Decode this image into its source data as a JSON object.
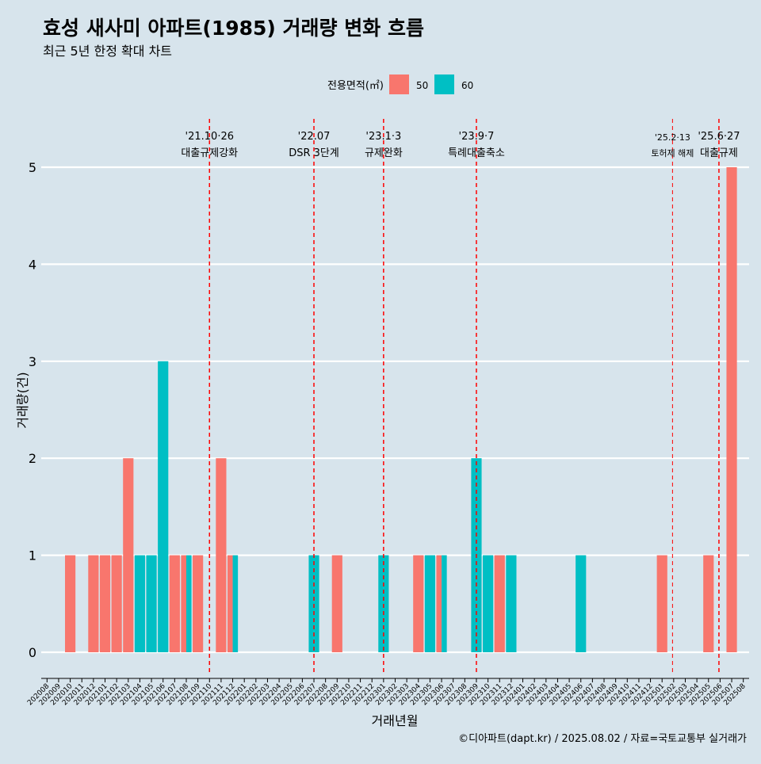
{
  "chart_data": {
    "type": "bar",
    "title": "효성 새사미 아파트(1985) 거래량 변화 흐름",
    "subtitle": "최근 5년 한정 확대 차트",
    "xlabel": "거래년월",
    "ylabel": "거래량(건)",
    "ylim": [
      0,
      5
    ],
    "yticks": [
      "0",
      "1",
      "2",
      "3",
      "4",
      "5"
    ],
    "legend": {
      "title": "전용면적(㎡)",
      "position": "top"
    },
    "caption": "©디아파트(dapt.kr) / 2025.08.02 / 자료=국토교통부 실거래가",
    "categories": [
      "202008",
      "202009",
      "202010",
      "202011",
      "202012",
      "202101",
      "202102",
      "202103",
      "202104",
      "202105",
      "202106",
      "202107",
      "202108",
      "202109",
      "202110",
      "202111",
      "202112",
      "202201",
      "202202",
      "202203",
      "202204",
      "202205",
      "202206",
      "202207",
      "202208",
      "202209",
      "202210",
      "202211",
      "202212",
      "202301",
      "202302",
      "202303",
      "202304",
      "202305",
      "202306",
      "202307",
      "202308",
      "202309",
      "202310",
      "202311",
      "202312",
      "202401",
      "202402",
      "202403",
      "202404",
      "202405",
      "202406",
      "202407",
      "202408",
      "202409",
      "202410",
      "202411",
      "202412",
      "202501",
      "202502",
      "202503",
      "202504",
      "202505",
      "202506",
      "202507",
      "202508"
    ],
    "series": [
      {
        "name": "50",
        "color": "#f8766d",
        "values": [
          0,
          0,
          1,
          0,
          1,
          1,
          1,
          2,
          0,
          0,
          0,
          1,
          1,
          1,
          0,
          2,
          1,
          0,
          0,
          0,
          0,
          0,
          0,
          0,
          0,
          1,
          0,
          0,
          0,
          0,
          0,
          0,
          1,
          0,
          1,
          0,
          0,
          0,
          0,
          1,
          0,
          0,
          0,
          0,
          0,
          0,
          0,
          0,
          0,
          0,
          0,
          0,
          0,
          1,
          0,
          0,
          0,
          1,
          0,
          5,
          0
        ]
      },
      {
        "name": "60",
        "color": "#00bfc4",
        "values": [
          0,
          0,
          0,
          0,
          0,
          0,
          0,
          0,
          1,
          1,
          3,
          0,
          1,
          0,
          0,
          0,
          1,
          0,
          0,
          0,
          0,
          0,
          0,
          1,
          0,
          0,
          0,
          0,
          0,
          1,
          0,
          0,
          0,
          1,
          1,
          0,
          0,
          2,
          1,
          0,
          1,
          0,
          0,
          0,
          0,
          0,
          1,
          0,
          0,
          0,
          0,
          0,
          0,
          0,
          0,
          0,
          0,
          0,
          0,
          0,
          0
        ]
      }
    ],
    "events": [
      {
        "date": "'21.10·26",
        "label": "대출규제강화",
        "at": 14.5
      },
      {
        "date": "'22.07",
        "label": "DSR 3단계",
        "at": 23.5
      },
      {
        "date": "'23.1·3",
        "label": "규제완화",
        "at": 29.5
      },
      {
        "date": "'23.9·7",
        "label": "특례대출축소",
        "at": 37.5
      },
      {
        "date": "'25.2·13",
        "label": "토허제 해제",
        "at": 54.4
      },
      {
        "date": "'25.6·27",
        "label": "대출규제",
        "at": 58.4
      }
    ],
    "colors": {
      "background": "#d7e4ec",
      "grid": "#ffffff",
      "event_line": "#ff0000"
    }
  }
}
